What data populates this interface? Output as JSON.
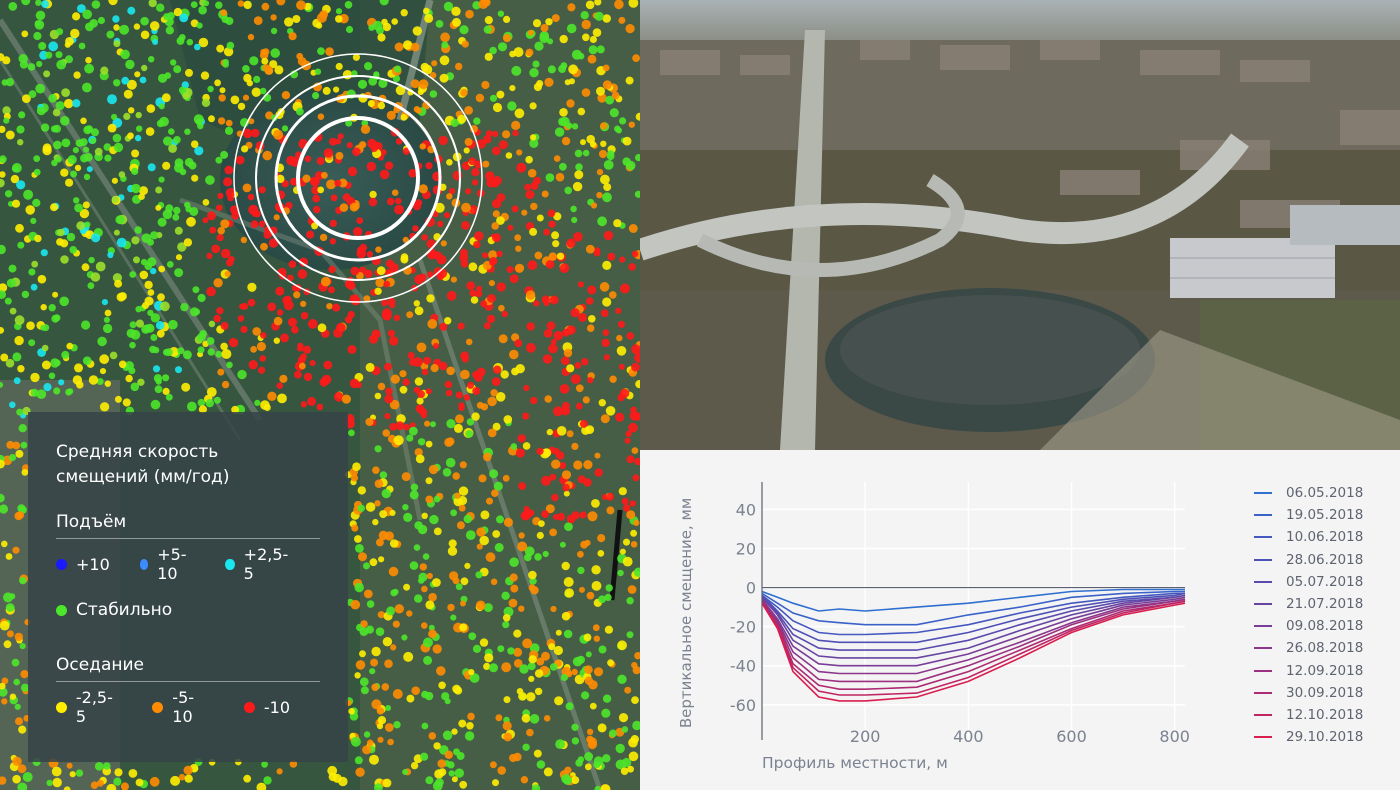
{
  "legend": {
    "title": "Средняя скорость смещений (мм/год)",
    "uplift": {
      "label": "Подъём",
      "items": [
        {
          "label": "+10",
          "color": "#1a1aff"
        },
        {
          "label": "+5-10",
          "color": "#3d8cff"
        },
        {
          "label": "+2,5-5",
          "color": "#19e8f0"
        }
      ]
    },
    "stable": {
      "label": "Стабильно",
      "color": "#4ce62a"
    },
    "subsidence": {
      "label": "Оседание",
      "items": [
        {
          "label": "-2,5-5",
          "color": "#ffee00"
        },
        {
          "label": "-5-10",
          "color": "#ff8c00"
        },
        {
          "label": "-10",
          "color": "#ff1a1a"
        }
      ]
    }
  },
  "chart_data": {
    "type": "line",
    "xlabel": "Профиль местности, м",
    "ylabel": "Вертикальное смещение, мм",
    "xlim": [
      0,
      820
    ],
    "ylim": [
      -78,
      54
    ],
    "xticks": [
      200,
      400,
      600,
      800
    ],
    "yticks": [
      40,
      20,
      0,
      -20,
      -40,
      -60
    ],
    "grid": true,
    "legend_position": "right",
    "x": [
      0,
      30,
      60,
      110,
      150,
      200,
      300,
      400,
      500,
      600,
      700,
      800,
      820
    ],
    "series": [
      {
        "name": "06.05.2018",
        "color": "#2f6fd0",
        "values": [
          -2,
          -5,
          -8,
          -12,
          -11,
          -12,
          -10,
          -8,
          -5,
          -2,
          -1,
          -1,
          -1
        ]
      },
      {
        "name": "19.05.2018",
        "color": "#3a62c8",
        "values": [
          -3,
          -8,
          -13,
          -17,
          -18,
          -19,
          -19,
          -14,
          -10,
          -5,
          -3,
          -2,
          -2
        ]
      },
      {
        "name": "10.06.2018",
        "color": "#4458bf",
        "values": [
          -4,
          -10,
          -17,
          -23,
          -24,
          -24,
          -23,
          -19,
          -13,
          -8,
          -5,
          -3,
          -3
        ]
      },
      {
        "name": "28.06.2018",
        "color": "#4e50b6",
        "values": [
          -4,
          -12,
          -21,
          -27,
          -28,
          -28,
          -28,
          -23,
          -16,
          -10,
          -6,
          -4,
          -3
        ]
      },
      {
        "name": "05.07.2018",
        "color": "#5a4aad",
        "values": [
          -5,
          -13,
          -24,
          -31,
          -32,
          -32,
          -32,
          -27,
          -19,
          -12,
          -7,
          -5,
          -4
        ]
      },
      {
        "name": "21.07.2018",
        "color": "#6844a2",
        "values": [
          -5,
          -14,
          -27,
          -35,
          -36,
          -36,
          -36,
          -31,
          -22,
          -14,
          -8,
          -5,
          -4
        ]
      },
      {
        "name": "09.08.2018",
        "color": "#793e97",
        "values": [
          -6,
          -16,
          -30,
          -39,
          -40,
          -40,
          -40,
          -34,
          -25,
          -16,
          -9,
          -6,
          -5
        ]
      },
      {
        "name": "26.08.2018",
        "color": "#8a378b",
        "values": [
          -6,
          -17,
          -33,
          -43,
          -44,
          -44,
          -44,
          -37,
          -28,
          -18,
          -10,
          -7,
          -6
        ]
      },
      {
        "name": "12.09.2018",
        "color": "#9b3180",
        "values": [
          -7,
          -18,
          -36,
          -47,
          -48,
          -48,
          -48,
          -40,
          -30,
          -19,
          -11,
          -7,
          -6
        ]
      },
      {
        "name": "30.09.2018",
        "color": "#ac2b72",
        "values": [
          -7,
          -19,
          -39,
          -50,
          -52,
          -52,
          -51,
          -43,
          -32,
          -21,
          -12,
          -8,
          -7
        ]
      },
      {
        "name": "12.10.2018",
        "color": "#bf2562",
        "values": [
          -8,
          -20,
          -41,
          -53,
          -55,
          -55,
          -54,
          -46,
          -34,
          -22,
          -13,
          -8,
          -7
        ]
      },
      {
        "name": "29.10.2018",
        "color": "#d81f50",
        "values": [
          -8,
          -21,
          -43,
          -56,
          -58,
          -58,
          -56,
          -48,
          -36,
          -23,
          -14,
          -9,
          -8
        ]
      }
    ]
  }
}
